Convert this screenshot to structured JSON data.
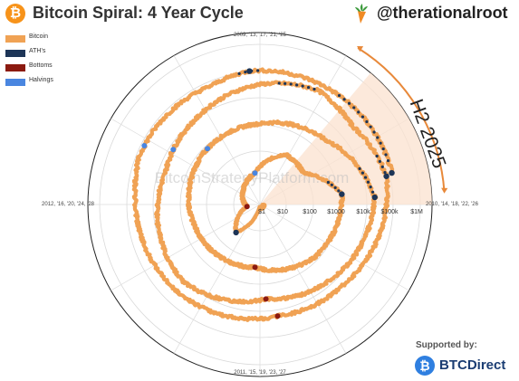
{
  "header": {
    "logo_glyph": "₿",
    "title": "Bitcoin Spiral: 4 Year Cycle",
    "handle": "@therationalroot"
  },
  "legend": [
    {
      "label": "Bitcoin",
      "color": "#f0a254"
    },
    {
      "label": "ATH's",
      "color": "#1d3557"
    },
    {
      "label": "Bottoms",
      "color": "#8b1a10"
    },
    {
      "label": "Halvings",
      "color": "#4a86e0"
    }
  ],
  "chart_data": {
    "type": "polar-spiral",
    "angular_labels": {
      "top": "2009, '13, '17, '21, '25",
      "right": "2010, '14, '18, '22, '26",
      "bottom": "2011, '15, '19, '23, '27",
      "left": "2012, '16, '20, '24, '28"
    },
    "radial_ticks": [
      "$1",
      "$10",
      "$100",
      "$1000",
      "$10k",
      "$100k",
      "$1M"
    ],
    "radial_scale": "log",
    "highlight_label": "H2 2025",
    "watermark": "BitcoinStrategyPlatform.com",
    "colors": {
      "price": "#f0a254",
      "ath": "#1d3557",
      "bottom": "#8b1a10",
      "halving": "#4a86e0",
      "highlight": "#fbe2cf",
      "arrow": "#e8893a"
    }
  },
  "footer": {
    "supported_by": "Supported by:",
    "sponsor": "BTCDirect"
  }
}
